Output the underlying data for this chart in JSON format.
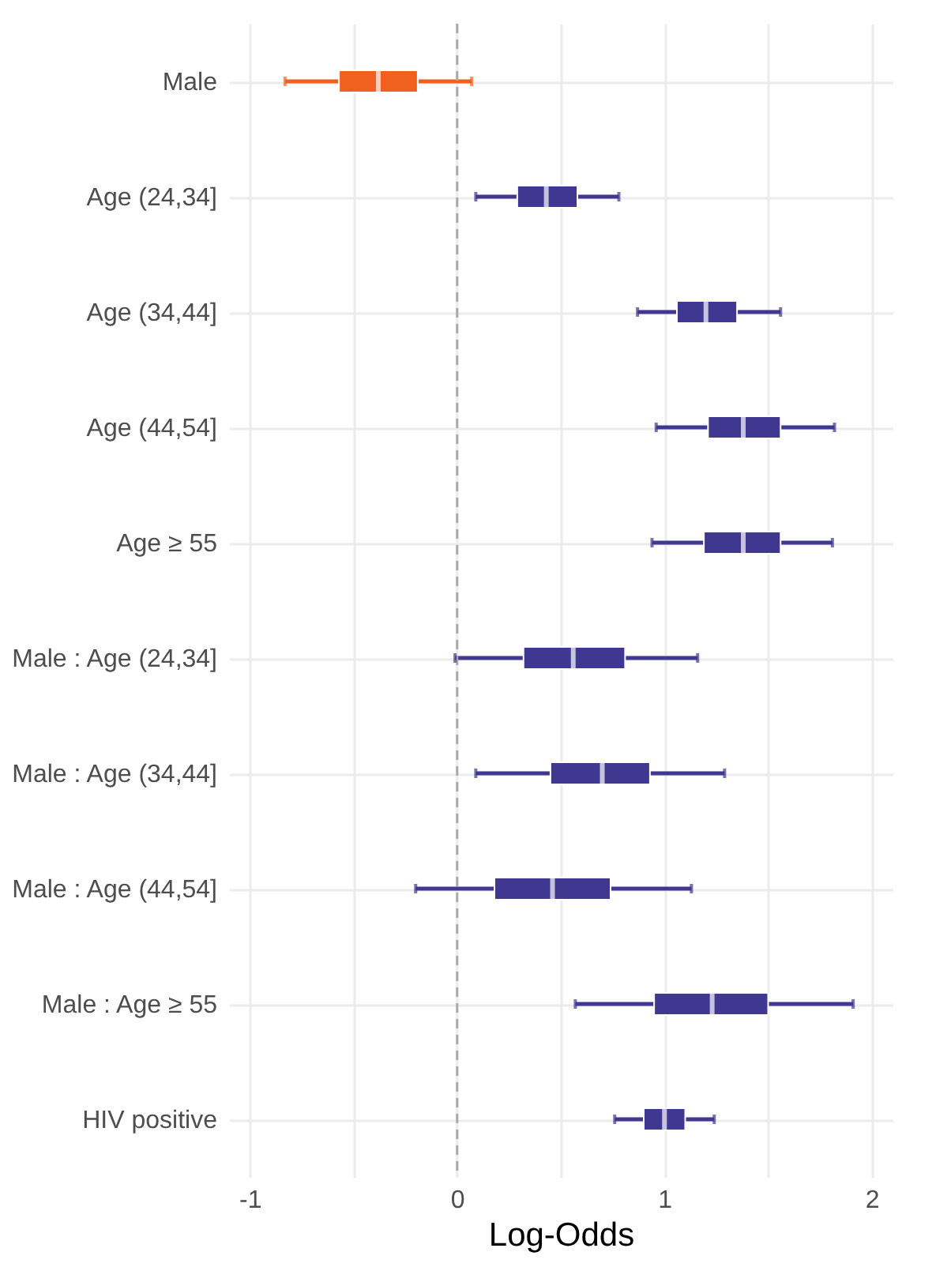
{
  "chart_data": {
    "type": "box",
    "orientation": "horizontal",
    "xlabel": "Log-Odds",
    "categories": [
      "Male",
      "Age (24,34]",
      "Age (34,44]",
      "Age (44,54]",
      "Age ≥ 55",
      "Male : Age (24,34]",
      "Male : Age (34,44]",
      "Male : Age (44,54]",
      "Male : Age ≥ 55",
      "HIV positive"
    ],
    "boxes": [
      {
        "low": -0.83,
        "q1": -0.57,
        "median": -0.38,
        "q3": -0.19,
        "high": 0.07
      },
      {
        "low": 0.09,
        "q1": 0.29,
        "median": 0.43,
        "q3": 0.58,
        "high": 0.78
      },
      {
        "low": 0.87,
        "q1": 1.06,
        "median": 1.2,
        "q3": 1.35,
        "high": 1.56
      },
      {
        "low": 0.96,
        "q1": 1.21,
        "median": 1.38,
        "q3": 1.56,
        "high": 1.82
      },
      {
        "low": 0.94,
        "q1": 1.19,
        "median": 1.38,
        "q3": 1.56,
        "high": 1.81
      },
      {
        "low": -0.01,
        "q1": 0.32,
        "median": 0.56,
        "q3": 0.81,
        "high": 1.16
      },
      {
        "low": 0.09,
        "q1": 0.45,
        "median": 0.7,
        "q3": 0.93,
        "high": 1.29
      },
      {
        "low": -0.2,
        "q1": 0.18,
        "median": 0.46,
        "q3": 0.74,
        "high": 1.13
      },
      {
        "low": 0.57,
        "q1": 0.95,
        "median": 1.23,
        "q3": 1.5,
        "high": 1.91
      },
      {
        "low": 0.76,
        "q1": 0.9,
        "median": 1.0,
        "q3": 1.1,
        "high": 1.24
      }
    ],
    "colors": [
      "#f0601f",
      "#3f3790",
      "#3f3790",
      "#3f3790",
      "#3f3790",
      "#3f3790",
      "#3f3790",
      "#3f3790",
      "#3f3790",
      "#3f3790"
    ],
    "xlim": [
      -1.1,
      2.1
    ],
    "xticks": [
      -1,
      {
        "value": -0.5,
        "label": null
      },
      0,
      {
        "value": 0.5,
        "label": null
      },
      1,
      {
        "value": 1.5,
        "label": null
      },
      2
    ],
    "grid": true,
    "ref_lines": [
      {
        "axis": "x",
        "value": 0,
        "color": "#aaaaaa",
        "line_style": "dashed"
      }
    ]
  }
}
